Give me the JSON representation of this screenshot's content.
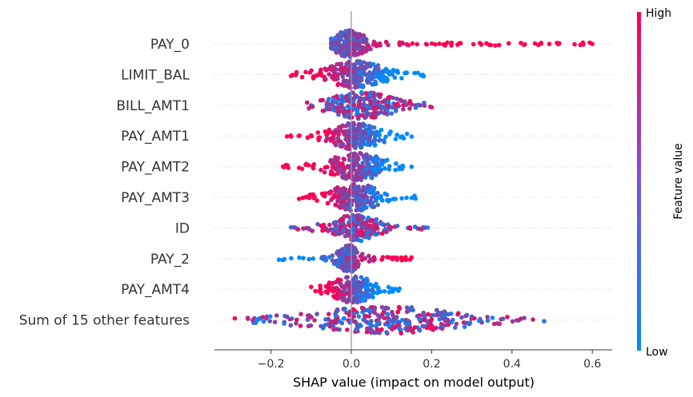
{
  "chart_data": {
    "type": "scatter",
    "subtype": "shap-beeswarm",
    "xlabel": "SHAP value (impact on model output)",
    "xlim": [
      -0.34,
      0.65
    ],
    "xticks": [
      {
        "value": -0.2,
        "label": "−0.2"
      },
      {
        "value": 0.0,
        "label": "0.0"
      },
      {
        "value": 0.2,
        "label": "0.2"
      },
      {
        "value": 0.4,
        "label": "0.4"
      },
      {
        "value": 0.6,
        "label": "0.6"
      }
    ],
    "features": [
      {
        "name": "PAY_0",
        "min": -0.05,
        "max": 0.6,
        "core": [
          -0.03,
          0.02
        ],
        "high_side": "right",
        "points": 260
      },
      {
        "name": "LIMIT_BAL",
        "min": -0.15,
        "max": 0.18,
        "core": [
          -0.04,
          0.06
        ],
        "high_side": "left",
        "points": 240
      },
      {
        "name": "BILL_AMT1",
        "min": -0.11,
        "max": 0.2,
        "core": [
          -0.03,
          0.08
        ],
        "high_side": "mixed",
        "points": 230
      },
      {
        "name": "PAY_AMT1",
        "min": -0.16,
        "max": 0.15,
        "core": [
          -0.03,
          0.05
        ],
        "high_side": "left",
        "points": 230
      },
      {
        "name": "PAY_AMT2",
        "min": -0.17,
        "max": 0.15,
        "core": [
          -0.03,
          0.06
        ],
        "high_side": "left",
        "points": 230
      },
      {
        "name": "PAY_AMT3",
        "min": -0.13,
        "max": 0.16,
        "core": [
          -0.03,
          0.05
        ],
        "high_side": "left",
        "points": 220
      },
      {
        "name": "ID",
        "min": -0.15,
        "max": 0.19,
        "core": [
          -0.03,
          0.05
        ],
        "high_side": "mixed",
        "points": 220
      },
      {
        "name": "PAY_2",
        "min": -0.18,
        "max": 0.15,
        "core": [
          -0.02,
          0.01
        ],
        "high_side": "right",
        "points": 220
      },
      {
        "name": "PAY_AMT4",
        "min": -0.1,
        "max": 0.12,
        "core": [
          -0.03,
          0.04
        ],
        "high_side": "left",
        "points": 210
      },
      {
        "name": "Sum of 15 other features",
        "min": -0.29,
        "max": 0.48,
        "core": [
          -0.05,
          0.22
        ],
        "high_side": "mixed",
        "points": 320
      }
    ],
    "colorbar": {
      "label": "Feature value",
      "high": "High",
      "low": "Low"
    },
    "colors": {
      "high": "#ff0052",
      "low": "#008bfb",
      "zero_line": "#999999",
      "row_line": "#cccccc",
      "axis": "#333333"
    }
  }
}
